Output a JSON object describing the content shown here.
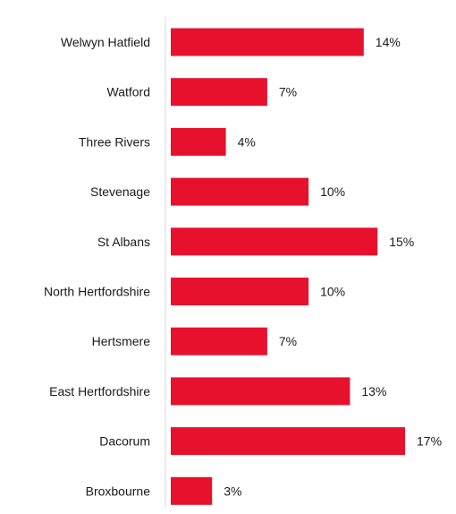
{
  "chart_data": {
    "type": "bar",
    "orientation": "horizontal",
    "categories": [
      "Welwyn Hatfield",
      "Watford",
      "Three Rivers",
      "Stevenage",
      "St Albans",
      "North Hertfordshire",
      "Hertsmere",
      "East Hertfordshire",
      "Dacorum",
      "Broxbourne"
    ],
    "values": [
      14,
      7,
      4,
      10,
      15,
      10,
      7,
      13,
      17,
      3
    ],
    "value_labels": [
      "14%",
      "7%",
      "4%",
      "10%",
      "15%",
      "10%",
      "7%",
      "13%",
      "17%",
      "3%"
    ],
    "value_suffix": "%",
    "xlim": [
      0,
      17
    ],
    "grid": false,
    "legend": "none",
    "bar_color": "#E8112D",
    "axis_color": "#D9D9D9",
    "label_color": "#1A1A1A"
  }
}
